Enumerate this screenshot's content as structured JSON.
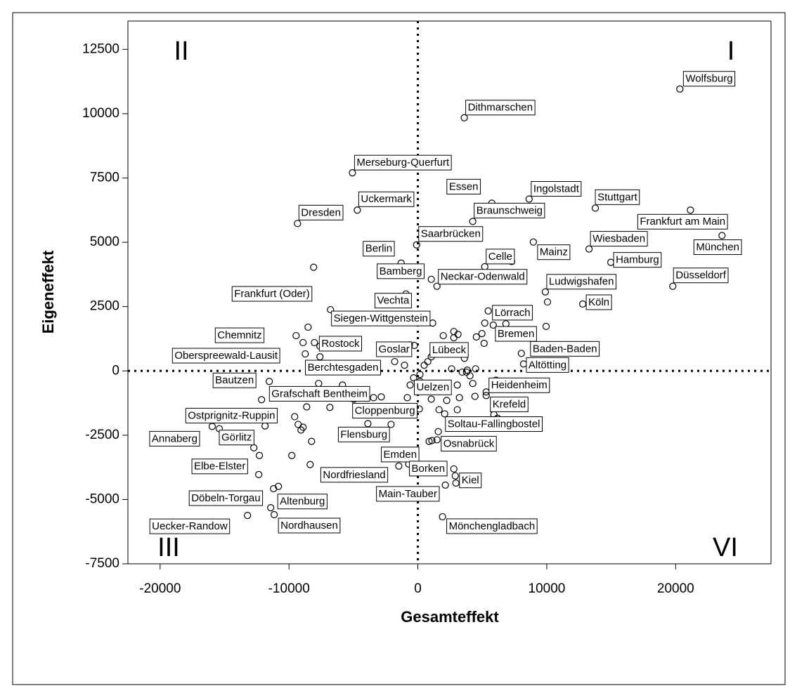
{
  "chart_data": {
    "type": "scatter",
    "x_label": "Gesamteffekt",
    "y_label": "Eigeneffekt",
    "xlim": [
      -22500,
      27400
    ],
    "ylim": [
      -7500,
      13600
    ],
    "xticks": [
      -20000,
      -10000,
      0,
      10000,
      20000
    ],
    "yticks": [
      -7500,
      -5000,
      -2500,
      0,
      2500,
      5000,
      7500,
      10000,
      12500
    ],
    "reference_lines": {
      "x": 0,
      "y": 0
    },
    "quadrant_labels": [
      "I",
      "II",
      "III",
      "VI"
    ],
    "color": "#000000",
    "labels": [
      "Wolfsburg",
      "Dithmarschen",
      "Merseburg-Querfurt",
      "Essen",
      "Ingolstadt",
      "Stuttgart",
      "Frankfurt am Main",
      "Uckermark",
      "Dresden",
      "Braunschweig",
      "Saarbrücken",
      "Wiesbaden",
      "München",
      "Berlin",
      "Mainz",
      "Celle",
      "Hamburg",
      "Bamberg",
      "Neckar-Odenwald",
      "Ludwigshafen",
      "Düsseldorf",
      "Frankfurt (Oder)",
      "Köln",
      "Vechta",
      "Siegen-Wittgenstein",
      "Lörrach",
      "Chemnitz",
      "Bremen",
      "Rostock",
      "Oberspreewald-Lausit",
      "Goslar",
      "Lübeck",
      "Baden-Baden",
      "Berchtesgaden",
      "Altötting",
      "Bautzen",
      "Heidenheim",
      "Grafschaft Bentheim",
      "Uelzen",
      "Krefeld",
      "Ostprignitz-Ruppin",
      "Cloppenburg",
      "Soltau-Fallingbostel",
      "Annaberg",
      "Görlitz",
      "Flensburg",
      "Osnabrück",
      "Emden",
      "Elbe-Elster",
      "Nordfriesland",
      "Borken",
      "Kiel",
      "Main-Tauber",
      "Döbeln-Torgau",
      "Altenburg",
      "Uecker-Randow",
      "Nordhausen",
      "Mönchengladbach",
      null,
      null,
      null,
      null,
      null,
      null,
      null,
      null,
      null,
      null,
      null,
      null,
      null,
      null,
      null,
      null,
      null,
      null,
      null,
      null,
      null,
      null,
      null,
      null,
      null,
      null,
      null,
      null,
      null,
      null,
      null,
      null,
      null,
      null,
      null,
      null,
      null,
      null,
      null,
      null,
      null,
      null,
      null,
      null,
      null,
      null,
      null,
      null,
      null,
      null,
      null,
      null,
      null,
      null,
      null,
      null,
      null,
      null,
      null,
      null,
      null,
      null,
      null,
      null
    ],
    "x": [
      20330,
      3600,
      -5080,
      5740,
      8630,
      13770,
      21150,
      -4700,
      -9340,
      4260,
      -100,
      13280,
      23600,
      -1300,
      8960,
      5190,
      14970,
      1040,
      1480,
      9890,
      19780,
      -6780,
      12790,
      -930,
      1150,
      5460,
      -9450,
      5850,
      -8030,
      -8740,
      -270,
      4540,
      8030,
      -1800,
      8200,
      -11530,
      5300,
      -5850,
      160,
      5300,
      -9560,
      2080,
      5900,
      -15960,
      -15410,
      -3880,
      1480,
      -710,
      -12300,
      -1480,
      -710,
      2900,
      2130,
      -11200,
      -10820,
      -13220,
      -11150,
      1910,
      -8090,
      -8520,
      -8910,
      -7600,
      -7600,
      -7700,
      -8630,
      -6830,
      -12130,
      -11860,
      -9290,
      -8910,
      -9070,
      -8250,
      -12730,
      -9780,
      -8360,
      -12350,
      -11420,
      -4970,
      -3440,
      -2840,
      -820,
      -600,
      -330,
      -1040,
      -660,
      160,
      490,
      770,
      1040,
      1970,
      2790,
      2790,
      3110,
      3610,
      3830,
      4480,
      4970,
      2620,
      3440,
      3770,
      4040,
      4260,
      3060,
      4430,
      3220,
      2240,
      1640,
      1040,
      3060,
      110,
      2400,
      1090,
      870,
      1580,
      -2080,
      2790,
      2950,
      5140,
      5190,
      6830,
      9950,
      10060,
      6070,
      6180,
      7270
    ],
    "y": [
      10960,
      9840,
      7700,
      6520,
      6680,
      6330,
      6250,
      6250,
      5730,
      5810,
      4900,
      4740,
      5260,
      4190,
      5010,
      4050,
      4220,
      3560,
      3290,
      3070,
      3290,
      2380,
      2600,
      2990,
      1860,
      2330,
      1370,
      1780,
      1100,
      660,
      990,
      1320,
      680,
      360,
      270,
      -410,
      -820,
      -550,
      -410,
      -960,
      -1780,
      -1670,
      -1700,
      -2160,
      -2250,
      -2050,
      -2680,
      -3210,
      -3290,
      -3700,
      -3620,
      -4080,
      -4440,
      -4580,
      -4490,
      -5620,
      -5590,
      -5670,
      4030,
      1700,
      1100,
      960,
      550,
      -490,
      -1400,
      -1420,
      -1120,
      -2140,
      -2080,
      -2190,
      -2300,
      -2740,
      -2990,
      -3290,
      -3640,
      -4030,
      -5320,
      -1100,
      -1040,
      -1010,
      -1040,
      -550,
      -270,
      220,
      1010,
      -140,
      220,
      360,
      550,
      1370,
      1530,
      1290,
      1420,
      490,
      30,
      80,
      1450,
      80,
      -50,
      -50,
      -190,
      -490,
      -550,
      -990,
      -1040,
      -1150,
      -1510,
      -1100,
      -1510,
      -1480,
      -2050,
      -2710,
      -2740,
      -2360,
      -2080,
      -3810,
      -4360,
      1070,
      1860,
      1830,
      1730,
      2680,
      -360,
      -1840,
      4250
    ]
  }
}
